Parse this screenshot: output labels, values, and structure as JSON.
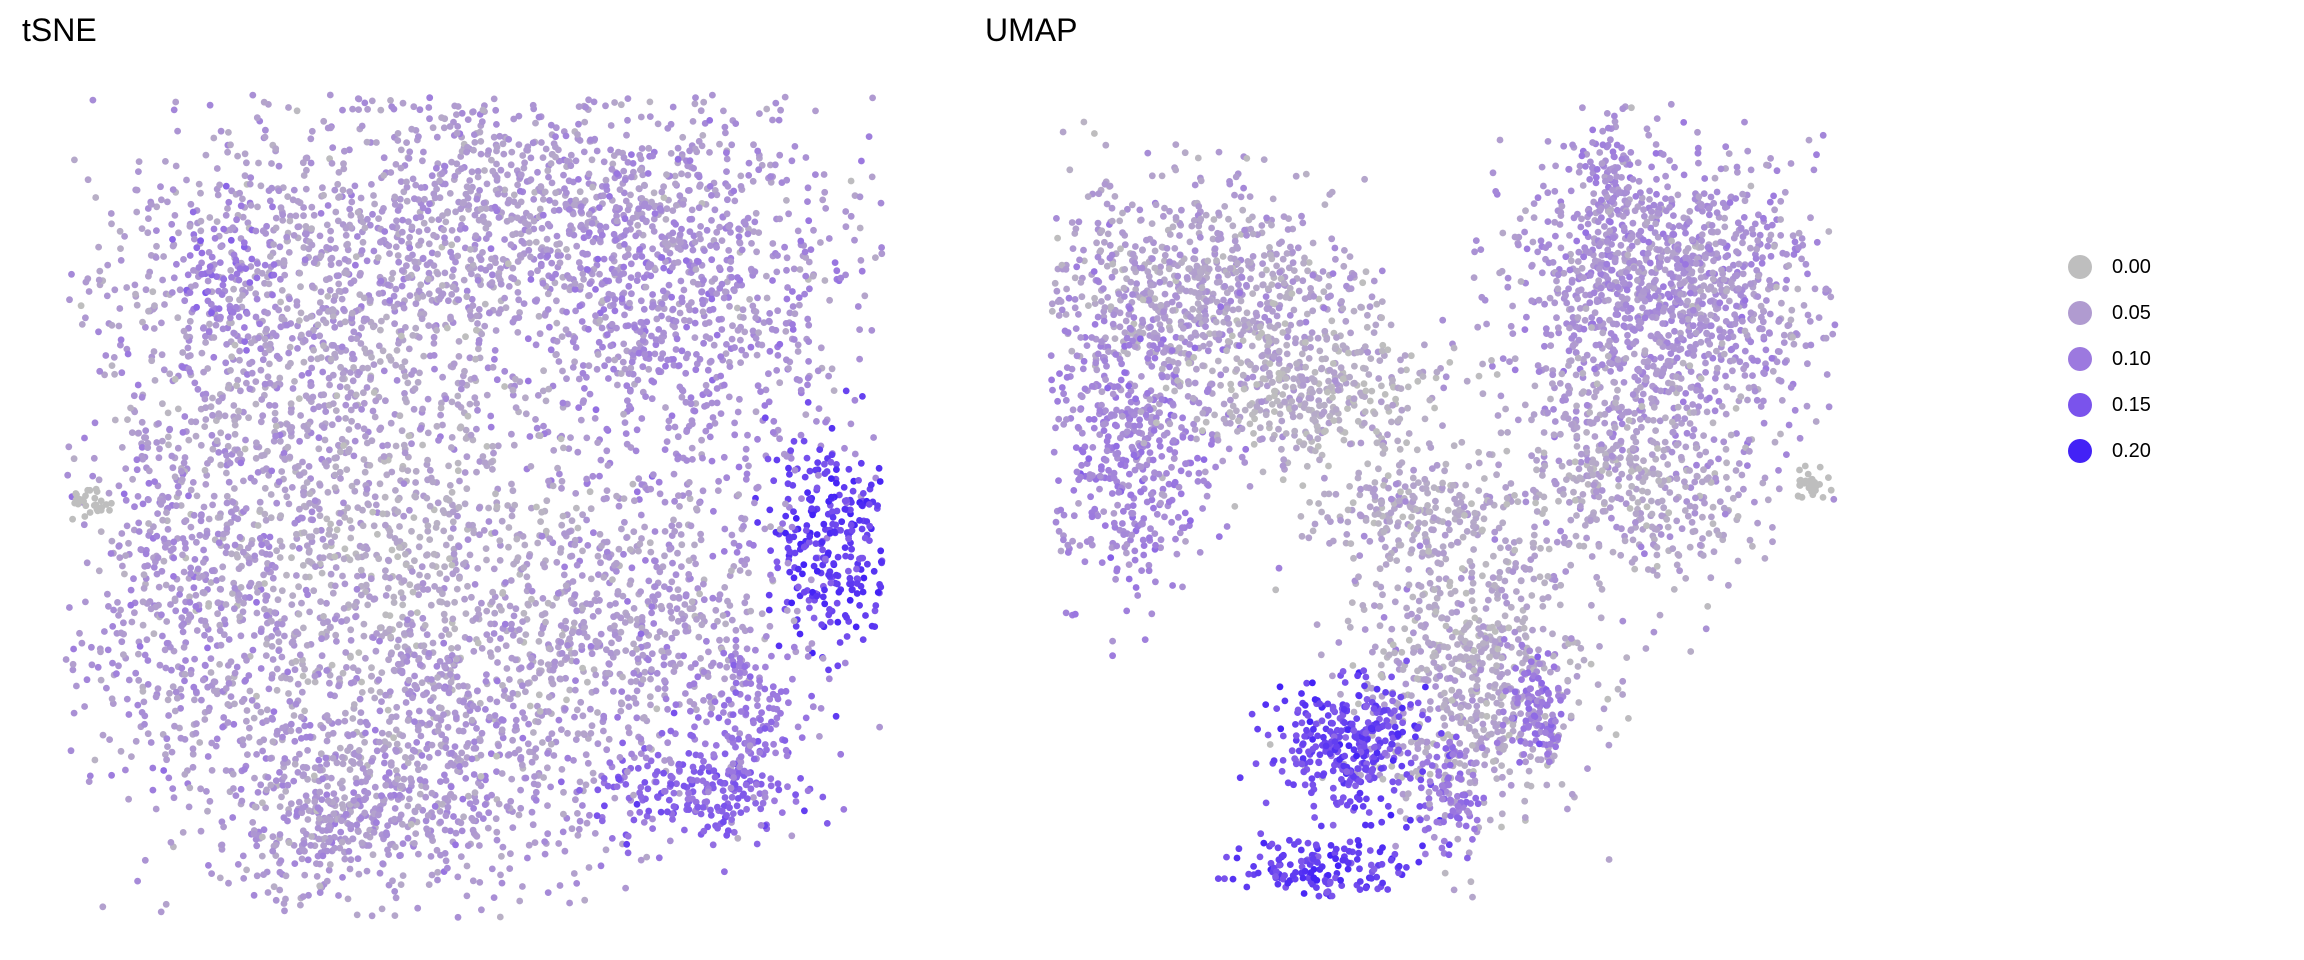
{
  "chart_data": {
    "type": "scatter",
    "color_scale": {
      "title": "",
      "breaks": [
        "0.00",
        "0.05",
        "0.10",
        "0.15",
        "0.20"
      ],
      "values": [
        0.0,
        0.05,
        0.1,
        0.15,
        0.2
      ],
      "colors": [
        "#bebebe",
        "#b09bd0",
        "#9c79df",
        "#7a53ec",
        "#4322f6"
      ],
      "legend_position": "right"
    },
    "panels": [
      {
        "title": "tSNE",
        "xlim": [
          0,
          100
        ],
        "ylim": [
          0,
          100
        ],
        "axes": false,
        "grid": false,
        "clusters": [
          {
            "x": 55,
            "y": 85,
            "sd": [
              20,
              9
            ],
            "n": 1300,
            "value": 0.05
          },
          {
            "x": 28,
            "y": 71,
            "sd": [
              13,
              10
            ],
            "n": 700,
            "value": 0.045
          },
          {
            "x": 76,
            "y": 71,
            "sd": [
              11,
              11
            ],
            "n": 700,
            "value": 0.07
          },
          {
            "x": 40,
            "y": 42,
            "sd": [
              14,
              12
            ],
            "n": 1000,
            "value": 0.03
          },
          {
            "x": 15,
            "y": 40,
            "sd": [
              8,
              14
            ],
            "n": 600,
            "value": 0.06
          },
          {
            "x": 46,
            "y": 19,
            "sd": [
              13,
              9
            ],
            "n": 700,
            "value": 0.055
          },
          {
            "x": 94,
            "y": 46,
            "sd": [
              4,
              7
            ],
            "n": 300,
            "value": 0.17
          },
          {
            "x": 77,
            "y": 15,
            "sd": [
              6,
              3
            ],
            "n": 200,
            "value": 0.13
          },
          {
            "x": 3,
            "y": 50,
            "sd": [
              1.2,
              1.5
            ],
            "n": 30,
            "value": 0.0
          },
          {
            "x": 71,
            "y": 37,
            "sd": [
              9,
              8
            ],
            "n": 500,
            "value": 0.05
          },
          {
            "x": 20,
            "y": 79,
            "sd": [
              3,
              4
            ],
            "n": 80,
            "value": 0.1
          },
          {
            "x": 32,
            "y": 12,
            "sd": [
              7,
              5
            ],
            "n": 300,
            "value": 0.05
          },
          {
            "x": 84,
            "y": 24,
            "sd": [
              4,
              5
            ],
            "n": 150,
            "value": 0.1
          }
        ]
      },
      {
        "title": "UMAP",
        "xlim": [
          0,
          100
        ],
        "ylim": [
          0,
          100
        ],
        "axes": false,
        "grid": false,
        "clusters": [
          {
            "x": 78,
            "y": 76,
            "sd": [
              10,
              9
            ],
            "n": 1300,
            "value": 0.06
          },
          {
            "x": 18,
            "y": 76,
            "sd": [
              11,
              7
            ],
            "n": 800,
            "value": 0.04
          },
          {
            "x": 10,
            "y": 57,
            "sd": [
              6,
              9
            ],
            "n": 500,
            "value": 0.08
          },
          {
            "x": 34,
            "y": 63,
            "sd": [
              8,
              5
            ],
            "n": 400,
            "value": 0.02
          },
          {
            "x": 74,
            "y": 52,
            "sd": [
              9,
              7
            ],
            "n": 500,
            "value": 0.035
          },
          {
            "x": 71,
            "y": 90,
            "sd": [
              1.5,
              5
            ],
            "n": 80,
            "value": 0.07
          },
          {
            "x": 53,
            "y": 28,
            "sd": [
              8,
              9
            ],
            "n": 700,
            "value": 0.03
          },
          {
            "x": 38,
            "y": 19,
            "sd": [
              5,
              4
            ],
            "n": 350,
            "value": 0.16
          },
          {
            "x": 35,
            "y": 4,
            "sd": [
              5,
              2
            ],
            "n": 150,
            "value": 0.17
          },
          {
            "x": 97,
            "y": 52,
            "sd": [
              1.2,
              1
            ],
            "n": 30,
            "value": 0.0
          },
          {
            "x": 46,
            "y": 48,
            "sd": [
              6,
              3
            ],
            "n": 200,
            "value": 0.03
          },
          {
            "x": 51,
            "y": 13,
            "sd": [
              2,
              3
            ],
            "n": 80,
            "value": 0.1
          },
          {
            "x": 62,
            "y": 24,
            "sd": [
              2,
              4
            ],
            "n": 100,
            "value": 0.1
          }
        ]
      }
    ]
  }
}
